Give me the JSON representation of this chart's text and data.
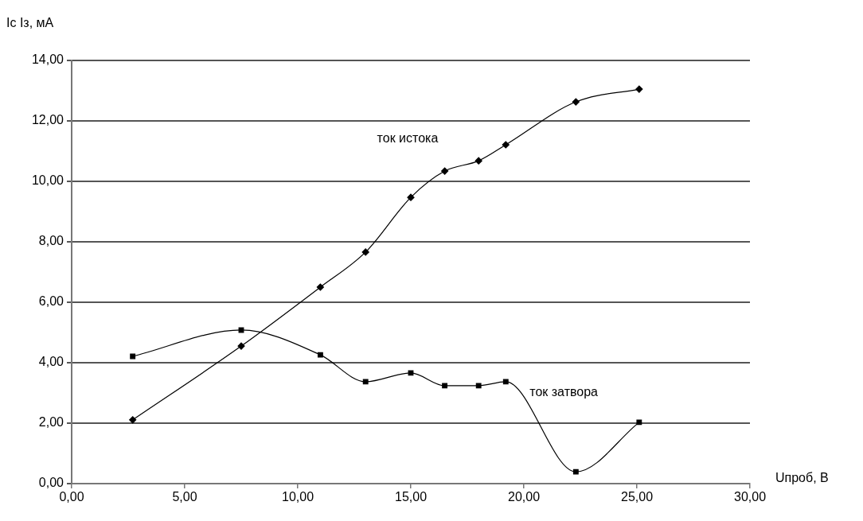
{
  "chart_data": {
    "type": "line",
    "xlabel": "Uпроб, В",
    "ylabel": "Ic Iз, мА",
    "x": [
      2.7,
      7.5,
      11.0,
      13.0,
      15.0,
      16.5,
      18.0,
      19.2,
      22.3,
      25.1
    ],
    "series": [
      {
        "name": "ток истока",
        "color": "#000000",
        "marker": "diamond",
        "values": [
          2.11,
          4.55,
          6.5,
          7.66,
          9.47,
          10.34,
          10.68,
          11.21,
          12.63,
          13.05
        ]
      },
      {
        "name": "ток затвора",
        "color": "#000000",
        "marker": "square",
        "values": [
          4.21,
          5.08,
          4.26,
          3.37,
          3.66,
          3.24,
          3.24,
          3.37,
          0.39,
          2.03
        ]
      }
    ],
    "xlim": [
      0,
      30
    ],
    "xticks": [
      {
        "value": 0,
        "label": "0,00"
      },
      {
        "value": 5,
        "label": "5,00"
      },
      {
        "value": 10,
        "label": "10,00"
      },
      {
        "value": 15,
        "label": "15,00"
      },
      {
        "value": 20,
        "label": "20,00"
      },
      {
        "value": 25,
        "label": "25,00"
      },
      {
        "value": 30,
        "label": "30,00"
      }
    ],
    "ylim": [
      0,
      14
    ],
    "yticks": [
      {
        "value": 0,
        "label": "0,00"
      },
      {
        "value": 2,
        "label": "2,00"
      },
      {
        "value": 4,
        "label": "4,00"
      },
      {
        "value": 6,
        "label": "6,00"
      },
      {
        "value": 8,
        "label": "8,00"
      },
      {
        "value": 10,
        "label": "10,00"
      },
      {
        "value": 12,
        "label": "12,00"
      },
      {
        "value": 14,
        "label": "14,00"
      }
    ],
    "grid": "y",
    "legend": false
  }
}
